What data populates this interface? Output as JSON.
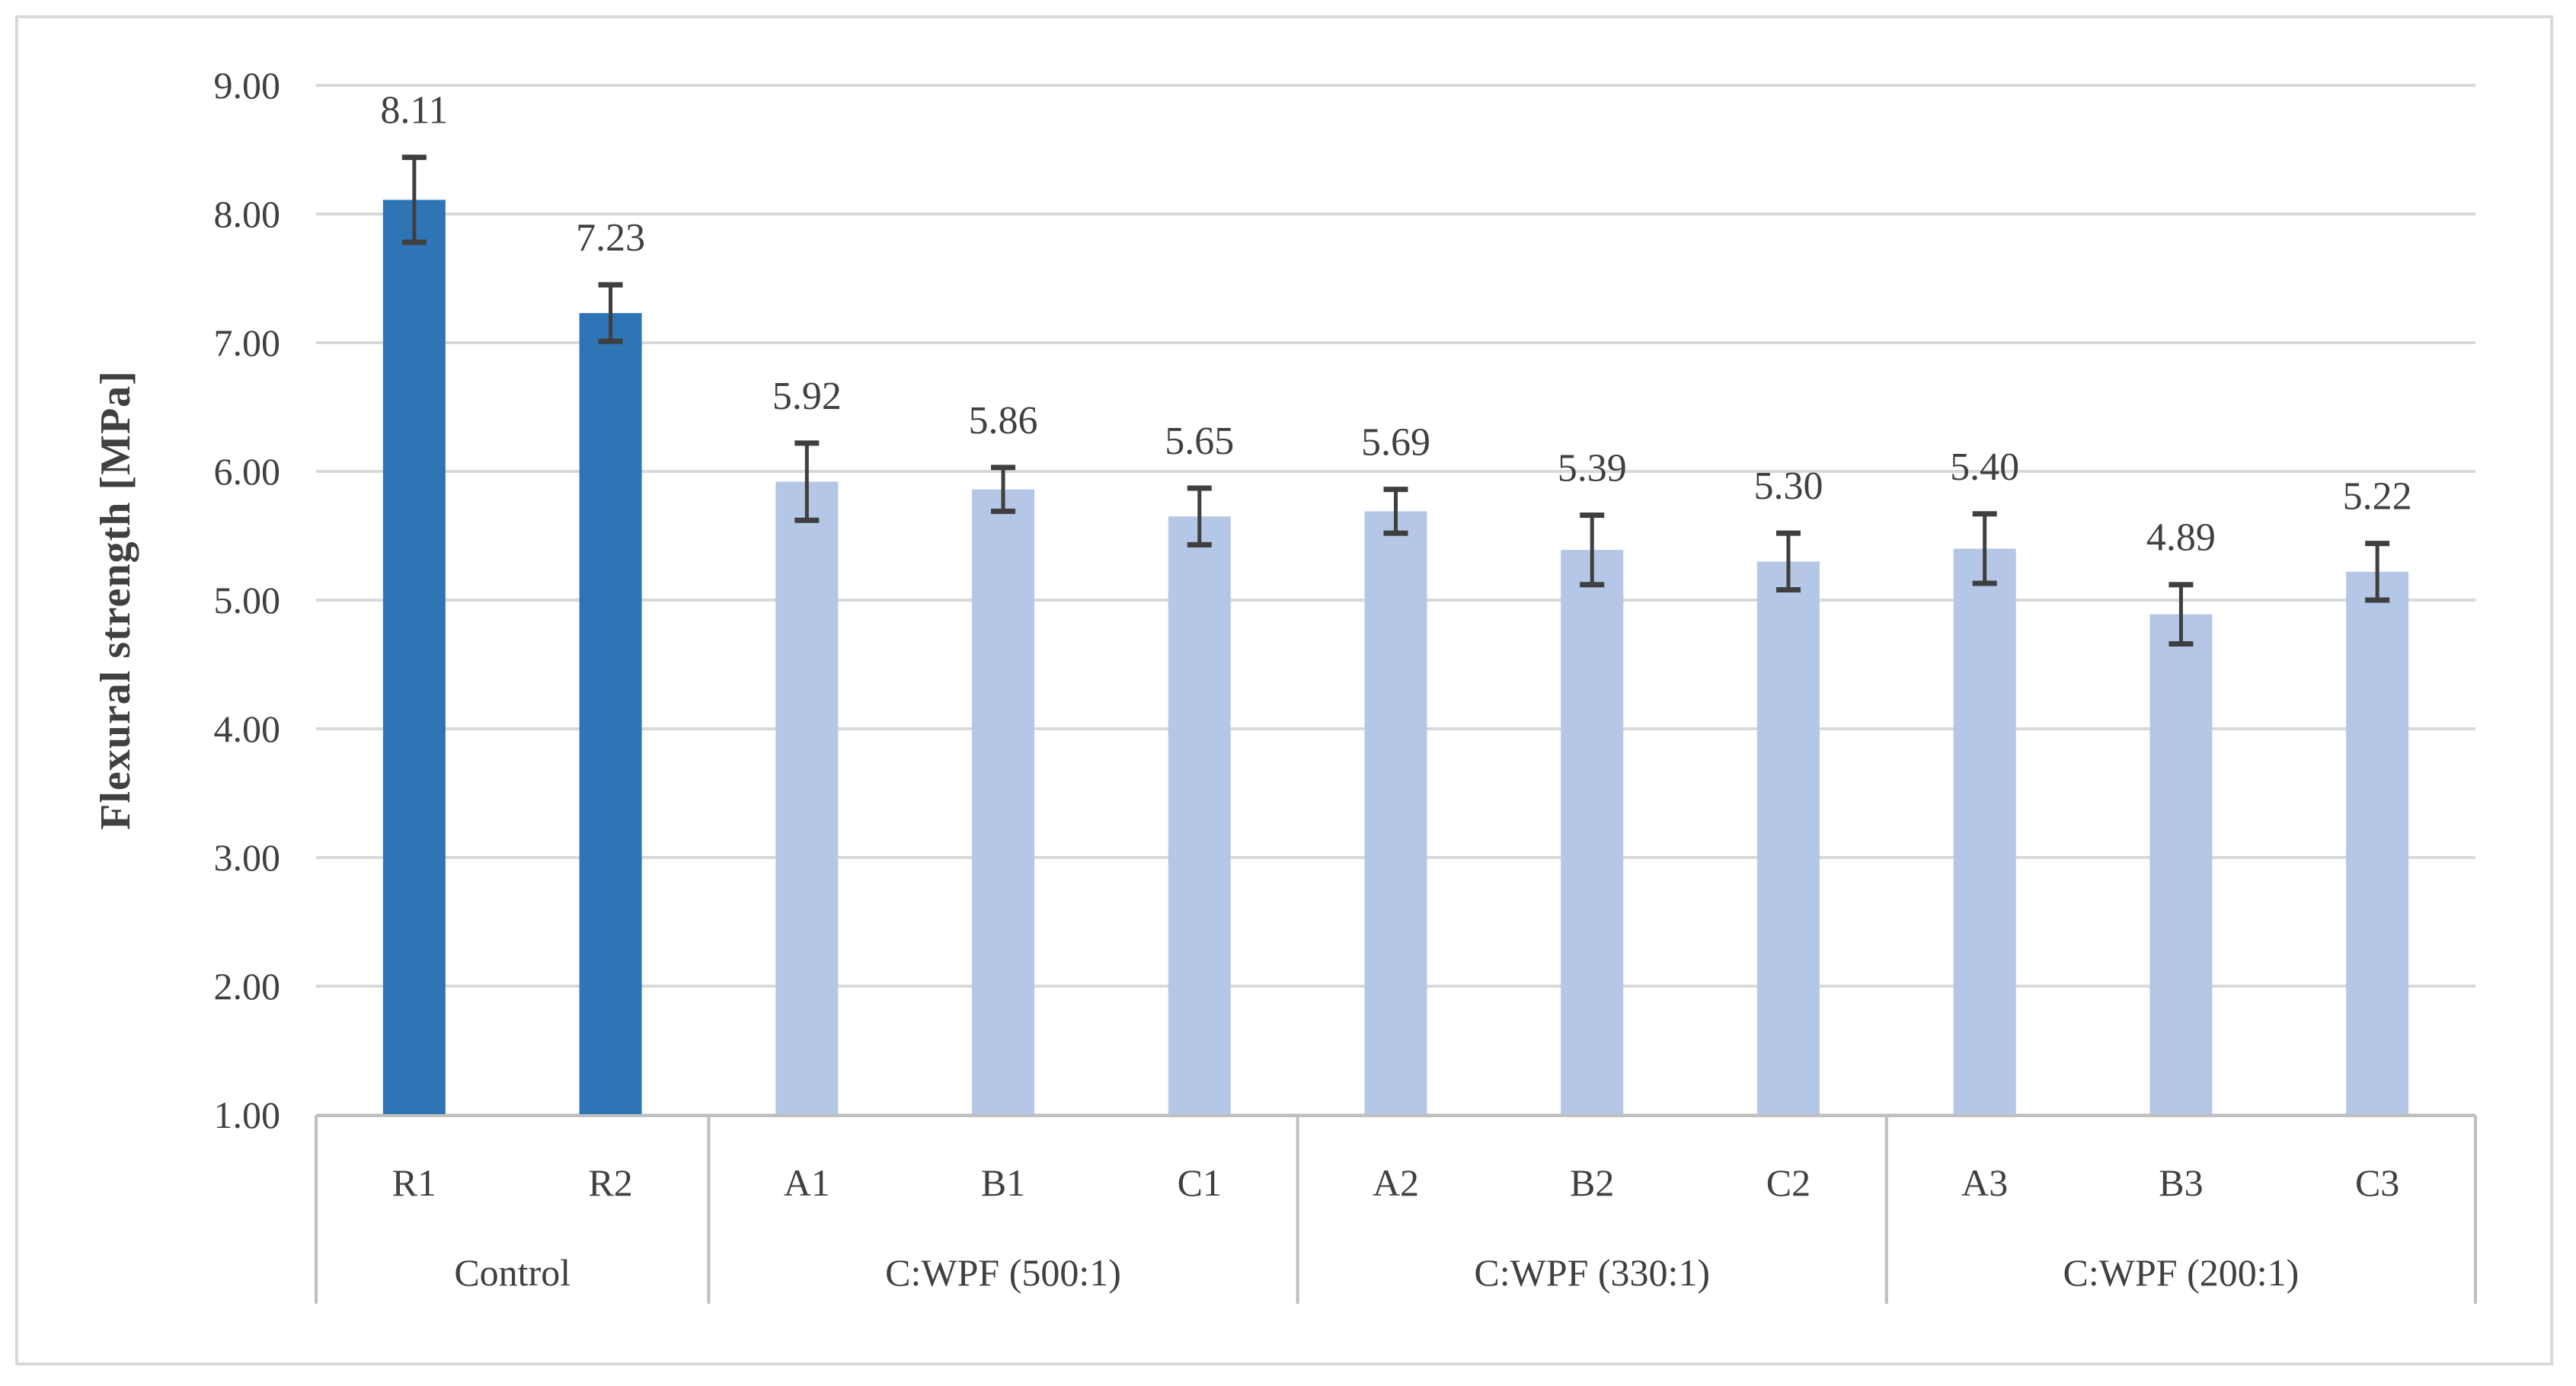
{
  "figure": {
    "background": "#FFFFFF",
    "border_color": "#D9D9D9"
  },
  "chart_data": {
    "type": "bar",
    "title": "",
    "xlabel": "",
    "ylabel": "Flexural strength [MPa]",
    "ylim": [
      1.0,
      9.0
    ],
    "ytick_interval": 1.0,
    "ytick_labels": [
      "9.00",
      "8.00",
      "7.00",
      "6.00",
      "5.00",
      "4.00",
      "3.00",
      "2.00",
      "1.00"
    ],
    "grid": "horizontal-only",
    "legend_position": "none",
    "categories": [
      "R1",
      "R2",
      "A1",
      "B1",
      "C1",
      "A2",
      "B2",
      "C2",
      "A3",
      "B3",
      "C3"
    ],
    "groups": [
      {
        "label": "Control",
        "categories": [
          "R1",
          "R2"
        ]
      },
      {
        "label": "C:WPF (500:1)",
        "categories": [
          "A1",
          "B1",
          "C1"
        ]
      },
      {
        "label": "C:WPF (330:1)",
        "categories": [
          "A2",
          "B2",
          "C2"
        ]
      },
      {
        "label": "C:WPF (200:1)",
        "categories": [
          "A3",
          "B3",
          "C3"
        ]
      }
    ],
    "values": [
      8.11,
      7.23,
      5.92,
      5.86,
      5.65,
      5.69,
      5.39,
      5.3,
      5.4,
      4.89,
      5.22
    ],
    "value_labels": [
      "8.11",
      "7.23",
      "5.92",
      "5.86",
      "5.65",
      "5.69",
      "5.39",
      "5.30",
      "5.40",
      "4.89",
      "5.22"
    ],
    "error_bars_plus_minus": [
      0.33,
      0.22,
      0.3,
      0.17,
      0.22,
      0.17,
      0.27,
      0.22,
      0.27,
      0.23,
      0.22
    ],
    "bar_colors": [
      "#2E75B6",
      "#2E75B6",
      "#B4C7E7",
      "#B4C7E7",
      "#B4C7E7",
      "#B4C7E7",
      "#B4C7E7",
      "#B4C7E7",
      "#B4C7E7",
      "#B4C7E7",
      "#B4C7E7"
    ],
    "colors": {
      "control_bar": "#2E75B6",
      "treatment_bar": "#B4C7E7",
      "error_bar": "#3F3F3F",
      "gridline": "#D9D9D9",
      "axis_line": "#BFBFBF",
      "text": "#404040",
      "plot_background": "#FFFFFF"
    }
  }
}
